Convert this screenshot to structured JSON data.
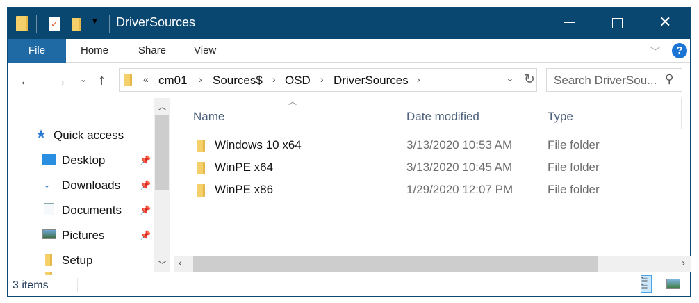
{
  "window": {
    "title": "DriverSources"
  },
  "ribbon": {
    "tabs": [
      "File",
      "Home",
      "Share",
      "View"
    ],
    "accent": "#1f6aa5"
  },
  "address": {
    "overflow": "«",
    "crumbs": [
      "cm01",
      "Sources$",
      "OSD",
      "DriverSources"
    ]
  },
  "search": {
    "placeholder": "Search DriverSou..."
  },
  "nav": {
    "items": [
      {
        "label": "Quick access",
        "icon": "star-icon"
      },
      {
        "label": "Desktop",
        "icon": "desktop-icon",
        "pinned": true
      },
      {
        "label": "Downloads",
        "icon": "download-icon",
        "pinned": true
      },
      {
        "label": "Documents",
        "icon": "documents-icon",
        "pinned": true
      },
      {
        "label": "Pictures",
        "icon": "pictures-icon",
        "pinned": true
      },
      {
        "label": "Setup",
        "icon": "folder-icon"
      }
    ]
  },
  "columns": {
    "name": "Name",
    "date": "Date modified",
    "type": "Type"
  },
  "files": [
    {
      "name": "Windows 10 x64",
      "date": "3/13/2020 10:53 AM",
      "type": "File folder"
    },
    {
      "name": "WinPE x64",
      "date": "3/13/2020 10:45 AM",
      "type": "File folder"
    },
    {
      "name": "WinPE x86",
      "date": "1/29/2020 12:07 PM",
      "type": "File folder"
    }
  ],
  "status": {
    "count": "3 items"
  }
}
